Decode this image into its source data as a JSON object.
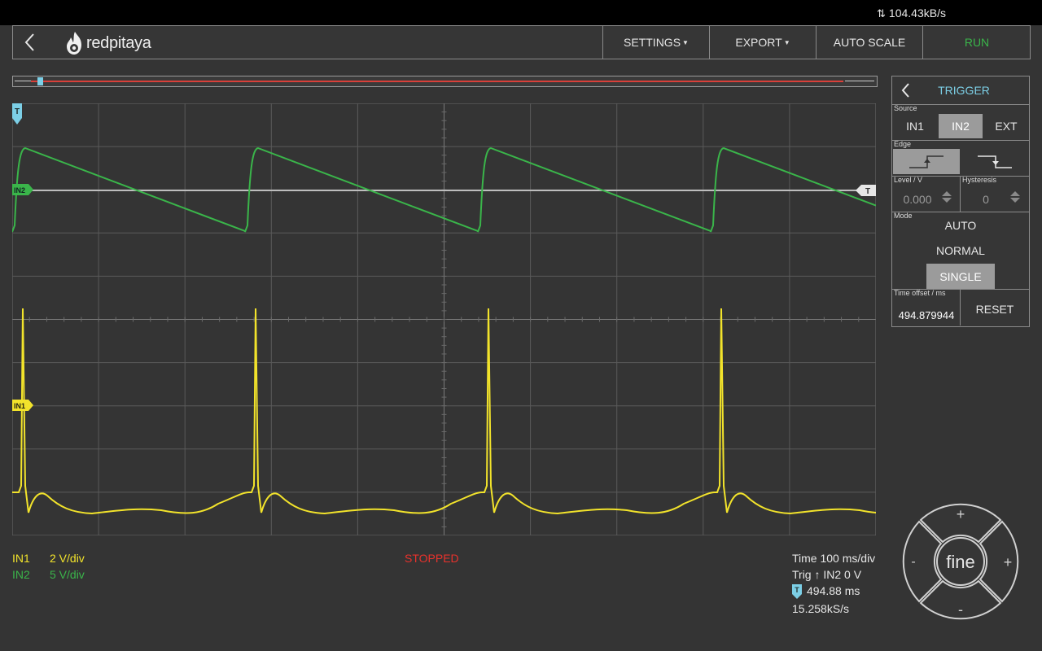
{
  "status": {
    "net_rate": "104.43kB/s"
  },
  "header": {
    "logo_text": "redpitaya",
    "settings": "SETTINGS",
    "export": "EXPORT",
    "auto_scale": "AUTO SCALE",
    "run": "RUN"
  },
  "plot": {
    "marker_trigger": "T",
    "marker_in2": "IN2",
    "marker_in1": "IN1",
    "marker_level": "T"
  },
  "legend": {
    "in1_name": "IN1",
    "in1_scale": "2 V/div",
    "in2_name": "IN2",
    "in2_scale": "5 V/div",
    "state": "STOPPED",
    "time": "Time 100 ms/div",
    "trig": "Trig ↑ IN2 0 V",
    "t_badge": "T",
    "offset": "494.88 ms",
    "rate": "15.258kS/s"
  },
  "trigger": {
    "title": "TRIGGER",
    "source_label": "Source",
    "sources": [
      "IN1",
      "IN2",
      "EXT"
    ],
    "source_selected": "IN2",
    "edge_label": "Edge",
    "level_label": "Level / V",
    "level_value": "0.000",
    "hysteresis_label": "Hysteresis",
    "hysteresis_value": "0",
    "mode_label": "Mode",
    "mode_auto": "AUTO",
    "mode_normal": "NORMAL",
    "mode_single": "SINGLE",
    "time_offset_label": "Time offset / ms",
    "time_offset_value": "494.879944",
    "reset": "RESET"
  },
  "fine": {
    "center": "fine",
    "plus": "+",
    "minus": "-"
  },
  "colors": {
    "in1": "#f2e32b",
    "in2": "#3ab54a",
    "accent": "#7ccfe6",
    "run": "#3ab54a",
    "stopped": "#e8322c"
  }
}
